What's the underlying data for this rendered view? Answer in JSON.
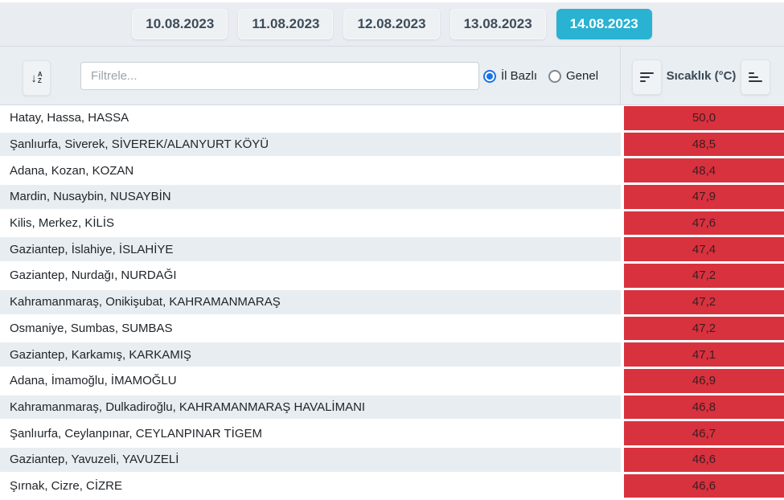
{
  "header": {
    "tabs": [
      {
        "label": "10.08.2023",
        "selected": false
      },
      {
        "label": "11.08.2023",
        "selected": false
      },
      {
        "label": "12.08.2023",
        "selected": false
      },
      {
        "label": "13.08.2023",
        "selected": false
      },
      {
        "label": "14.08.2023",
        "selected": true
      }
    ]
  },
  "filter": {
    "sort_alpha_icon": "sort-alpha-down-icon",
    "sort_alpha_arrow": "↓",
    "sort_alpha_top": "A",
    "sort_alpha_bottom": "Z",
    "input_placeholder": "Filtrele...",
    "radio_options": [
      {
        "label": "İl Bazlı",
        "selected": true
      },
      {
        "label": "Genel",
        "selected": false
      }
    ]
  },
  "temperature_panel": {
    "title": "Sıcaklık (°C)",
    "left_icon": "sort-amount-descending-icon",
    "right_icon": "sort-amount-ascending-icon"
  },
  "colors": {
    "accent_selected_tab": "#29b2d1",
    "row_stripe": "#e8edf1",
    "value_cell_red": "#d8323e",
    "radio_blue": "#1a73e8",
    "band_background": "#e9edf1"
  },
  "table": {
    "rows": [
      {
        "location": "Hatay, Hassa, HASSA",
        "value": "50,0"
      },
      {
        "location": "Şanlıurfa, Siverek, SİVEREK/ALANYURT KÖYÜ",
        "value": "48,5"
      },
      {
        "location": "Adana, Kozan, KOZAN",
        "value": "48,4"
      },
      {
        "location": "Mardin, Nusaybin, NUSAYBİN",
        "value": "47,9"
      },
      {
        "location": "Kilis, Merkez, KİLİS",
        "value": "47,6"
      },
      {
        "location": "Gaziantep, İslahiye, İSLAHİYE",
        "value": "47,4"
      },
      {
        "location": "Gaziantep, Nurdağı, NURDAĞI",
        "value": "47,2"
      },
      {
        "location": "Kahramanmaraş, Onikişubat, KAHRAMANMARAŞ",
        "value": "47,2"
      },
      {
        "location": "Osmaniye, Sumbas, SUMBAS",
        "value": "47,2"
      },
      {
        "location": "Gaziantep, Karkamış, KARKAMIŞ",
        "value": "47,1"
      },
      {
        "location": "Adana, İmamoğlu, İMAMOĞLU",
        "value": "46,9"
      },
      {
        "location": "Kahramanmaraş, Dulkadiroğlu, KAHRAMANMARAŞ HAVALİMANI",
        "value": "46,8"
      },
      {
        "location": "Şanlıurfa, Ceylanpınar, CEYLANPINAR TİGEM",
        "value": "46,7"
      },
      {
        "location": "Gaziantep, Yavuzeli, YAVUZELİ",
        "value": "46,6"
      },
      {
        "location": "Şırnak, Cizre, CİZRE",
        "value": "46,6"
      }
    ]
  }
}
